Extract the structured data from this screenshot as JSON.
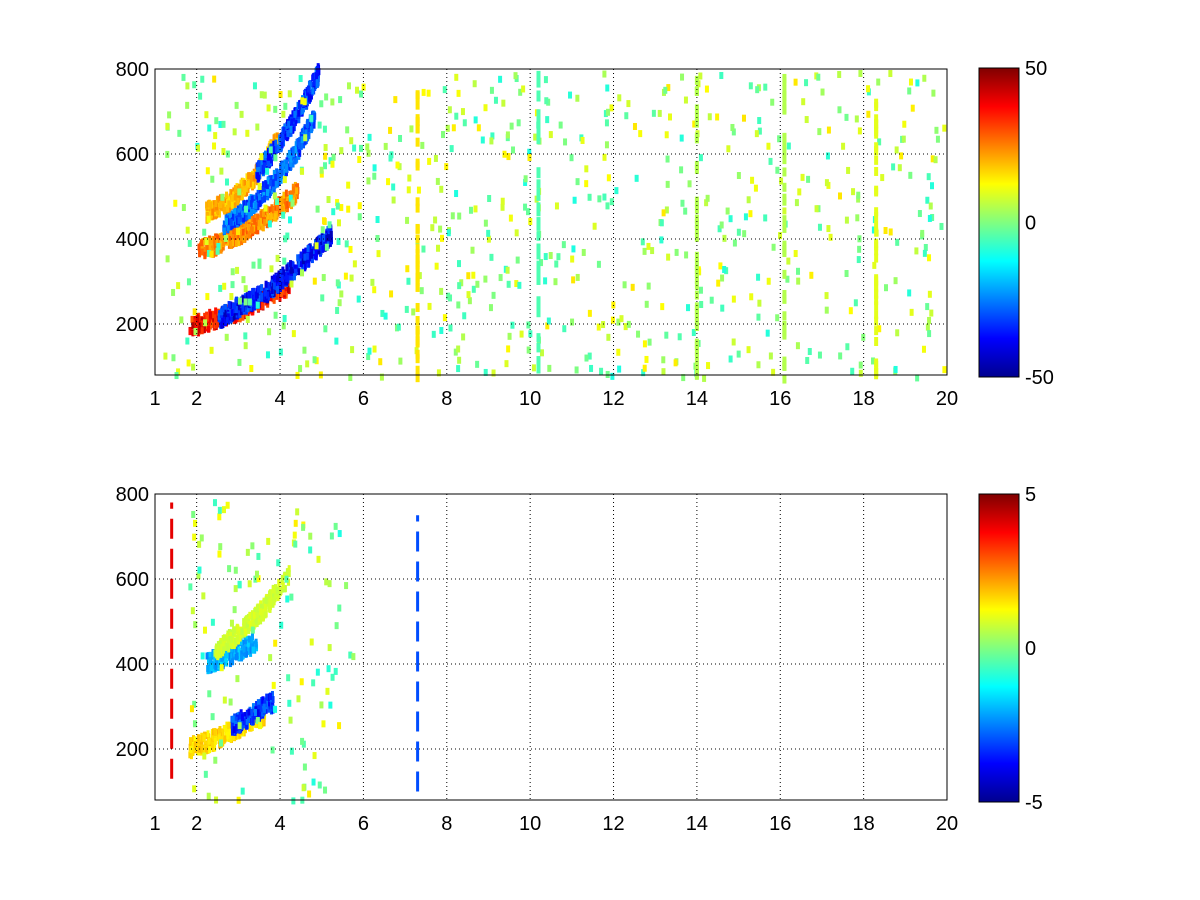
{
  "figure": {
    "background": "#ffffff"
  },
  "chart_data": [
    {
      "type": "heatmap",
      "title": "",
      "xlabel": "",
      "ylabel": "",
      "xlim": [
        1,
        20
      ],
      "ylim": [
        80,
        800
      ],
      "xticks": [
        1,
        2,
        4,
        6,
        8,
        10,
        12,
        14,
        16,
        18,
        20
      ],
      "xtick_labels": [
        "1",
        "2",
        "4",
        "6",
        "8",
        "10",
        "12",
        "14",
        "16",
        "18",
        "20"
      ],
      "yticks": [
        200,
        400,
        600,
        800
      ],
      "ytick_labels": [
        "200",
        "400",
        "600",
        "800"
      ],
      "grid": true,
      "colormap": "jet",
      "clim": [
        -50,
        50
      ],
      "colorbar_ticks": [
        50,
        0,
        -50
      ],
      "colorbar_tick_labels": [
        "50",
        "0",
        "-50"
      ],
      "features": [
        {
          "desc": "positive ridge",
          "x": [
            1.8,
            2.4,
            3.0,
            3.6,
            4.2
          ],
          "y": [
            200,
            220,
            240,
            270,
            300
          ],
          "value": 45
        },
        {
          "desc": "negative ridge",
          "x": [
            2.5,
            3.0,
            3.6,
            4.2,
            4.8,
            5.2
          ],
          "y": [
            220,
            250,
            280,
            330,
            380,
            420
          ],
          "value": -45
        },
        {
          "desc": "positive ridge",
          "x": [
            2.0,
            2.6,
            3.2,
            3.8,
            4.4
          ],
          "y": [
            380,
            400,
            430,
            470,
            520
          ],
          "value": 30
        },
        {
          "desc": "negative ridge",
          "x": [
            2.6,
            3.2,
            3.8,
            4.4,
            4.8
          ],
          "y": [
            440,
            480,
            540,
            620,
            700
          ],
          "value": -35
        },
        {
          "desc": "positive ridge",
          "x": [
            2.2,
            2.8,
            3.4,
            3.9
          ],
          "y": [
            470,
            500,
            560,
            640
          ],
          "value": 25
        },
        {
          "desc": "negative ridge",
          "x": [
            3.4,
            4.0,
            4.5,
            4.9
          ],
          "y": [
            560,
            640,
            720,
            800
          ],
          "value": -40
        }
      ],
      "vertical_bands": [
        {
          "x": 7.3,
          "value": 15
        },
        {
          "x": 10.2,
          "value": -5
        },
        {
          "x": 14.0,
          "value": 5
        },
        {
          "x": 16.1,
          "value": 5
        },
        {
          "x": 18.3,
          "value": 10
        }
      ]
    },
    {
      "type": "heatmap",
      "title": "",
      "xlabel": "",
      "ylabel": "",
      "xlim": [
        1,
        20
      ],
      "ylim": [
        80,
        800
      ],
      "xticks": [
        1,
        2,
        4,
        6,
        8,
        10,
        12,
        14,
        16,
        18,
        20
      ],
      "xtick_labels": [
        "1",
        "2",
        "4",
        "6",
        "8",
        "10",
        "12",
        "14",
        "16",
        "18",
        "20"
      ],
      "yticks": [
        200,
        400,
        600,
        800
      ],
      "ytick_labels": [
        "200",
        "400",
        "600",
        "800"
      ],
      "grid": true,
      "colormap": "jet",
      "clim": [
        -5,
        5
      ],
      "colorbar_ticks": [
        5,
        0,
        -5
      ],
      "colorbar_tick_labels": [
        "5",
        "0",
        "-5"
      ],
      "features": [
        {
          "desc": "positive ridge",
          "x": [
            1.8,
            2.4,
            3.0,
            3.6
          ],
          "y": [
            210,
            230,
            260,
            290
          ],
          "value": 2
        },
        {
          "desc": "negative streak",
          "x": [
            2.2,
            2.8,
            3.4
          ],
          "y": [
            410,
            430,
            460
          ],
          "value": -2.5
        },
        {
          "desc": "negative patch",
          "x": [
            2.8,
            3.3,
            3.8
          ],
          "y": [
            260,
            290,
            320
          ],
          "value": -4
        },
        {
          "desc": "mixed ridge",
          "x": [
            2.4,
            3.0,
            3.6,
            4.2
          ],
          "y": [
            440,
            480,
            540,
            620
          ],
          "value": 1
        }
      ],
      "vertical_lines": [
        {
          "x": 1.4,
          "y": [
            130,
            780
          ],
          "value": 4
        },
        {
          "x": 7.3,
          "y": [
            100,
            750
          ],
          "value": -3
        }
      ]
    }
  ]
}
